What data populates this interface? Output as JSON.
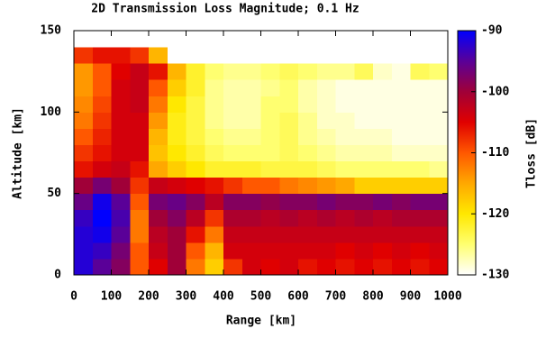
{
  "chart_data": {
    "type": "heatmap",
    "title": "2D Transmission Loss Magnitude; 0.1 Hz",
    "xlabel": "Range [km]",
    "ylabel": "Altitude [km]",
    "zlabel": "Tloss [dB]",
    "xlim": [
      0,
      1000
    ],
    "xticks": [
      0,
      100,
      200,
      300,
      400,
      500,
      600,
      700,
      800,
      900,
      1000
    ],
    "ylim": [
      0,
      150
    ],
    "yticks": [
      0,
      50,
      100,
      150
    ],
    "zlim": [
      -130,
      -90
    ],
    "zticks": [
      -90,
      -100,
      -110,
      -120,
      -130
    ],
    "colorscale": [
      "#ffffff",
      "#ffff70",
      "#ffe800",
      "#ffa800",
      "#ff5800",
      "#e00000",
      "#a00038",
      "#5a0098",
      "#0000ff"
    ],
    "x": [
      25,
      75,
      125,
      175,
      225,
      275,
      325,
      375,
      425,
      475,
      525,
      575,
      625,
      675,
      725,
      775,
      825,
      875,
      925,
      975
    ],
    "y": [
      5,
      15,
      25,
      35,
      45,
      55,
      65,
      75,
      85,
      95,
      105,
      115,
      125,
      135,
      145
    ],
    "z": [
      [
        -92,
        -95,
        -98,
        -110,
        -105,
        -100,
        -112,
        -118,
        -108,
        -104,
        -105,
        -104,
        -106,
        -105,
        -106,
        -105,
        -106,
        -105,
        -106,
        -105
      ],
      [
        -92,
        -93,
        -97,
        -110,
        -103,
        -100,
        -110,
        -116,
        -104,
        -104,
        -104,
        -104,
        -104,
        -104,
        -105,
        -104,
        -105,
        -104,
        -105,
        -104
      ],
      [
        -92,
        -91,
        -95,
        -112,
        -102,
        -100,
        -106,
        -112,
        -103,
        -103,
        -103,
        -103,
        -103,
        -103,
        -103,
        -103,
        -103,
        -103,
        -103,
        -103
      ],
      [
        -93,
        -90,
        -94,
        -112,
        -100,
        -98,
        -102,
        -108,
        -101,
        -101,
        -102,
        -101,
        -102,
        -101,
        -102,
        -101,
        -102,
        -101,
        -101,
        -101
      ],
      [
        -96,
        -91,
        -95,
        -110,
        -97,
        -96,
        -98,
        -102,
        -98,
        -98,
        -99,
        -98,
        -98,
        -97,
        -98,
        -98,
        -97,
        -98,
        -97,
        -97
      ],
      [
        -100,
        -97,
        -100,
        -108,
        -103,
        -104,
        -105,
        -106,
        -108,
        -110,
        -110,
        -112,
        -113,
        -114,
        -115,
        -118,
        -118,
        -118,
        -118,
        -118
      ],
      [
        -106,
        -104,
        -103,
        -106,
        -115,
        -118,
        -120,
        -122,
        -122,
        -122,
        -123,
        -123,
        -123,
        -124,
        -125,
        -125,
        -125,
        -125,
        -125,
        -126
      ],
      [
        -108,
        -106,
        -104,
        -104,
        -117,
        -120,
        -122,
        -124,
        -125,
        -125,
        -125,
        -124,
        -125,
        -126,
        -127,
        -127,
        -127,
        -128,
        -128,
        -128
      ],
      [
        -110,
        -107,
        -104,
        -104,
        -116,
        -121,
        -123,
        -125,
        -126,
        -126,
        -125,
        -124,
        -126,
        -127,
        -128,
        -128,
        -128,
        -129,
        -129,
        -129
      ],
      [
        -112,
        -108,
        -104,
        -104,
        -114,
        -121,
        -123,
        -126,
        -127,
        -127,
        -125,
        -124,
        -126,
        -128,
        -128,
        -129,
        -129,
        -129,
        -129,
        -129
      ],
      [
        -113,
        -109,
        -104,
        -103,
        -112,
        -120,
        -123,
        -126,
        -127,
        -127,
        -125,
        -125,
        -127,
        -128,
        -129,
        -129,
        -129,
        -129,
        -129,
        -129
      ],
      [
        -114,
        -110,
        -104,
        -103,
        -110,
        -118,
        -122,
        -126,
        -127,
        -127,
        -126,
        -125,
        -127,
        -128,
        -129,
        -129,
        -129,
        -129,
        -129,
        -129
      ],
      [
        -114,
        -110,
        -105,
        -103,
        -106,
        -116,
        -122,
        -125,
        -126,
        -126,
        -125,
        -124,
        -125,
        -126,
        -126,
        -124,
        -128,
        -129,
        -124,
        -125
      ],
      [
        -108,
        -106,
        -106,
        -108,
        -116,
        -130,
        -130,
        -130,
        -130,
        -130,
        -130,
        -130,
        -130,
        -130,
        -130,
        -130,
        -130,
        -130,
        -130,
        -130
      ],
      [
        -130,
        -130,
        -130,
        -130,
        -130,
        -130,
        -130,
        -130,
        -130,
        -130,
        -130,
        -130,
        -130,
        -130,
        -130,
        -130,
        -130,
        -130,
        -130,
        -130
      ]
    ]
  }
}
